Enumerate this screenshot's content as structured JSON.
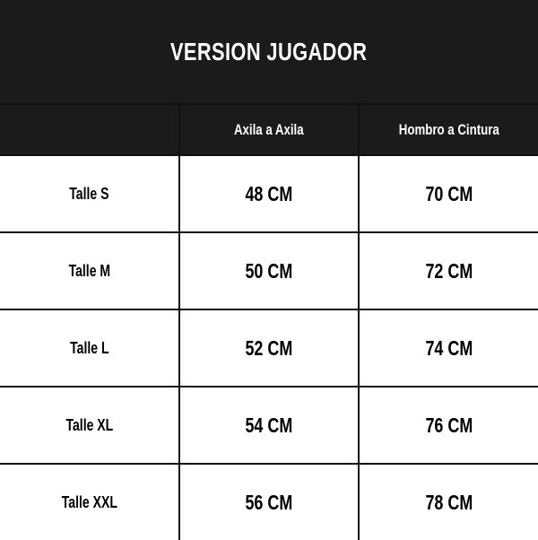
{
  "title": "VERSION JUGADOR",
  "columns": [
    "",
    "Axila a Axila",
    "Hombro a Cintura"
  ],
  "rows": [
    {
      "size": "Talle S",
      "axila": "48 CM",
      "hombro": "70 CM"
    },
    {
      "size": "Talle M",
      "axila": "50 CM",
      "hombro": "72 CM"
    },
    {
      "size": "Talle L",
      "axila": "52 CM",
      "hombro": "74 CM"
    },
    {
      "size": "Talle XL",
      "axila": "54 CM",
      "hombro": "76 CM"
    },
    {
      "size": "Talle XXL",
      "axila": "56 CM",
      "hombro": "78 CM"
    }
  ],
  "colors": {
    "header_bg": "#1b1b1b",
    "header_text": "#ffffff",
    "body_bg": "#ffffff"
  }
}
